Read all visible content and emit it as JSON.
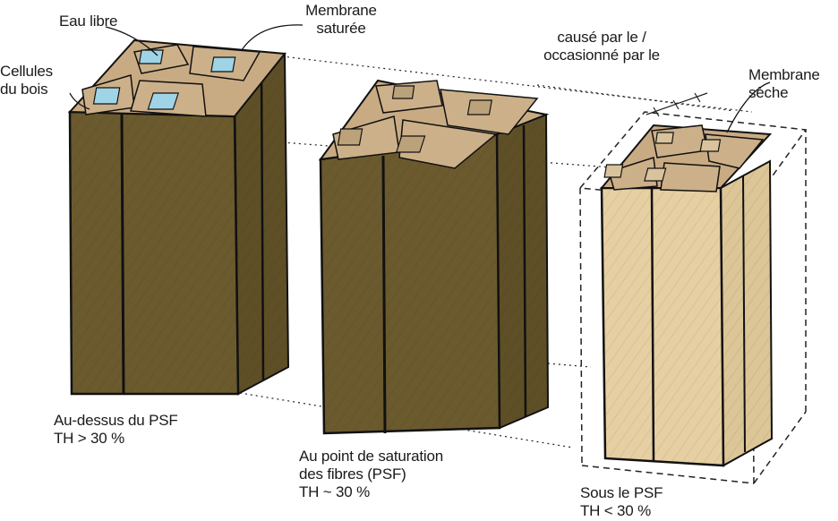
{
  "labels": {
    "eau_libre": "Eau libre",
    "membrane_saturee": [
      "Membrane",
      "saturée"
    ],
    "cellules_du_bois": [
      "Cellules",
      "du bois"
    ],
    "cause_par": [
      "causé par le /",
      "occasionné par le"
    ],
    "membrane_seche": [
      "Membrane",
      "sèche"
    ],
    "above_psf": [
      "Au-dessus du PSF",
      "TH > 30 %"
    ],
    "at_psf": [
      "Au point de saturation",
      "des fibres (PSF)",
      "TH ~ 30 %"
    ],
    "below_psf": [
      "Sous le PSF",
      "TH < 30 %"
    ]
  },
  "colors": {
    "wet_wood": "#6b5a2e",
    "wet_wood_light": "#7d6a3a",
    "dry_wood": "#e6cfa2",
    "top_face": "#cdb089",
    "free_water": "#9fd4e6",
    "outline": "#1a1a1a"
  }
}
